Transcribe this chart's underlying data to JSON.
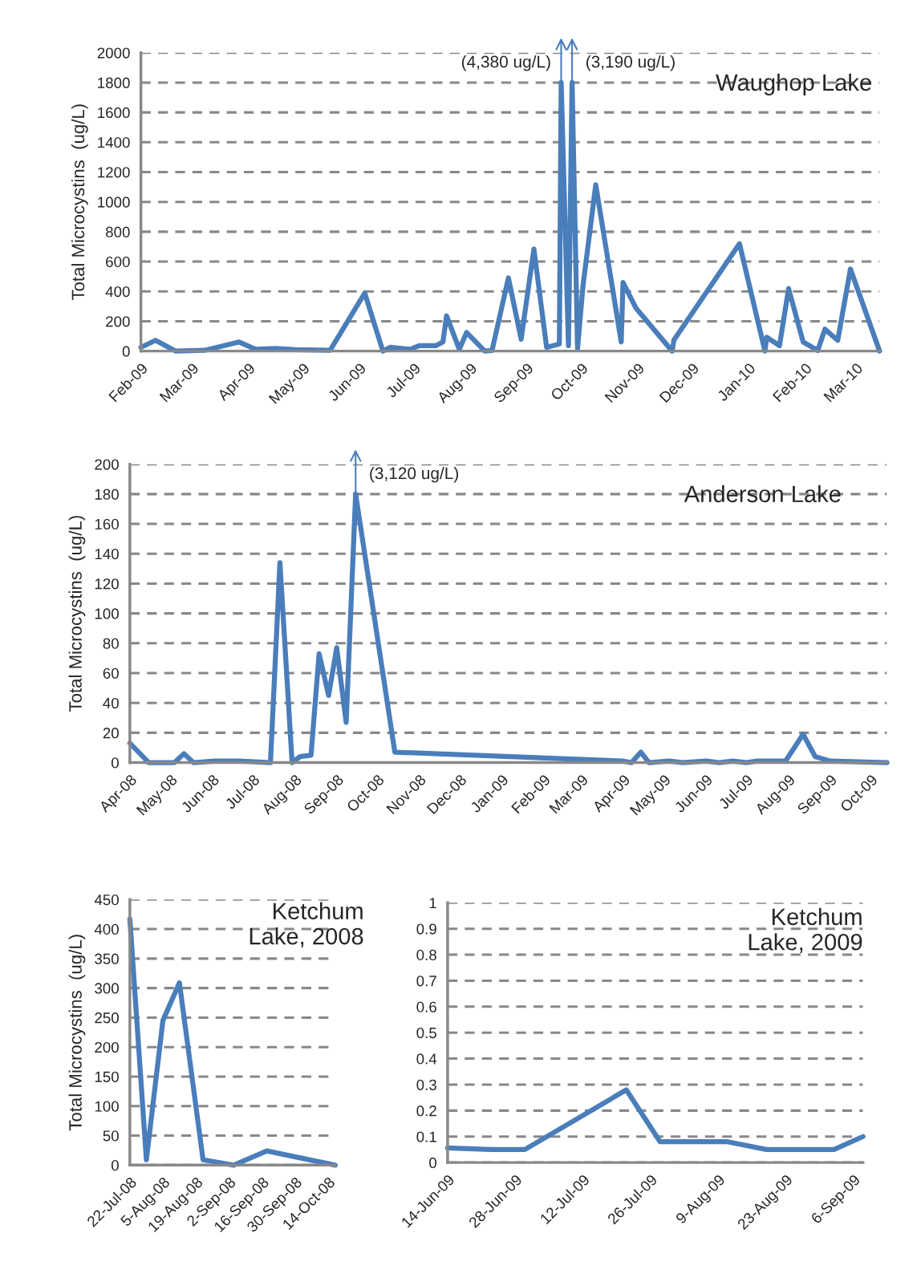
{
  "chart_data": [
    {
      "type": "line",
      "title": "Waughop Lake",
      "ylabel": "Total Microcystins  (ug/L)",
      "grid": "y",
      "xlim": [
        "2009-02-01",
        "2010-03-14"
      ],
      "xticks": [
        {
          "value": "2009-02-01",
          "label": "Feb-09"
        },
        {
          "value": "2009-03-01",
          "label": "Mar-09"
        },
        {
          "value": "2009-04-01",
          "label": "Apr-09"
        },
        {
          "value": "2009-05-01",
          "label": "May-09"
        },
        {
          "value": "2009-06-01",
          "label": "Jun-09"
        },
        {
          "value": "2009-07-01",
          "label": "Jul-09"
        },
        {
          "value": "2009-08-01",
          "label": "Aug-09"
        },
        {
          "value": "2009-09-01",
          "label": "Sep-09"
        },
        {
          "value": "2009-10-01",
          "label": "Oct-09"
        },
        {
          "value": "2009-11-01",
          "label": "Nov-09"
        },
        {
          "value": "2009-12-01",
          "label": "Dec-09"
        },
        {
          "value": "2010-01-01",
          "label": "Jan-10"
        },
        {
          "value": "2010-02-01",
          "label": "Feb-10"
        },
        {
          "value": "2010-03-01",
          "label": "Mar-10"
        }
      ],
      "ylim": [
        0,
        2000
      ],
      "yticks": [
        0,
        200,
        400,
        600,
        800,
        1000,
        1200,
        1400,
        1600,
        1800,
        2000
      ],
      "annotations": [
        {
          "text": "(4,380 ug/L)",
          "x": "2009-09-20",
          "y": 1800
        },
        {
          "text": "(3,190 ug/L)",
          "x": "2009-09-26",
          "y": 1800
        }
      ],
      "series": [
        {
          "color": "#4a7ebb",
          "x": [
            "2009-02-01",
            "2009-02-09",
            "2009-02-20",
            "2009-03-08",
            "2009-03-27",
            "2009-04-05",
            "2009-04-16",
            "2009-04-27",
            "2009-05-16",
            "2009-06-04",
            "2009-06-14",
            "2009-06-18",
            "2009-06-29",
            "2009-07-04",
            "2009-07-13",
            "2009-07-17",
            "2009-07-19",
            "2009-07-26",
            "2009-07-30",
            "2009-08-09",
            "2009-08-13",
            "2009-08-22",
            "2009-08-29",
            "2009-09-05",
            "2009-09-12",
            "2009-09-19",
            "2009-09-20",
            "2009-09-24",
            "2009-09-26",
            "2009-09-29",
            "2009-10-02",
            "2009-10-09",
            "2009-10-23",
            "2009-10-24",
            "2009-10-31",
            "2009-11-20",
            "2009-11-21",
            "2009-12-27",
            "2010-01-10",
            "2010-01-11",
            "2010-01-18",
            "2010-01-23",
            "2010-01-31",
            "2010-02-08",
            "2010-02-12",
            "2010-02-19",
            "2010-02-26",
            "2010-03-14"
          ],
          "values": [
            25,
            72,
            0,
            5,
            61,
            12,
            18,
            9,
            5,
            389,
            0,
            25,
            12,
            36,
            36,
            61,
            236,
            12,
            125,
            0,
            4,
            491,
            79,
            684,
            25,
            48,
            1800,
            36,
            1800,
            20,
            438,
            1115,
            61,
            460,
            290,
            0,
            75,
            720,
            0,
            93,
            36,
            419,
            61,
            4,
            147,
            72,
            550,
            0
          ]
        }
      ]
    },
    {
      "type": "line",
      "title": "Anderson Lake",
      "ylabel": "Total Microcystins  (ug/L)",
      "grid": "y",
      "xlim": [
        "2008-04-01",
        "2009-10-13"
      ],
      "xticks": [
        {
          "value": "2008-04-01",
          "label": "Apr-08"
        },
        {
          "value": "2008-05-01",
          "label": "May-08"
        },
        {
          "value": "2008-06-01",
          "label": "Jun-08"
        },
        {
          "value": "2008-07-01",
          "label": "Jul-08"
        },
        {
          "value": "2008-08-01",
          "label": "Aug-08"
        },
        {
          "value": "2008-09-01",
          "label": "Sep-08"
        },
        {
          "value": "2008-10-01",
          "label": "Oct-08"
        },
        {
          "value": "2008-11-01",
          "label": "Nov-08"
        },
        {
          "value": "2008-12-01",
          "label": "Dec-08"
        },
        {
          "value": "2009-01-01",
          "label": "Jan-09"
        },
        {
          "value": "2009-02-01",
          "label": "Feb-09"
        },
        {
          "value": "2009-03-01",
          "label": "Mar-09"
        },
        {
          "value": "2009-04-01",
          "label": "Apr-09"
        },
        {
          "value": "2009-05-01",
          "label": "May-09"
        },
        {
          "value": "2009-06-01",
          "label": "Jun-09"
        },
        {
          "value": "2009-07-01",
          "label": "Jul-09"
        },
        {
          "value": "2009-08-01",
          "label": "Aug-09"
        },
        {
          "value": "2009-09-01",
          "label": "Sep-09"
        },
        {
          "value": "2009-10-01",
          "label": "Oct-09"
        }
      ],
      "ylim": [
        0,
        200
      ],
      "yticks": [
        0,
        20,
        40,
        60,
        80,
        100,
        120,
        140,
        160,
        180,
        200
      ],
      "annotations": [
        {
          "text": "(3,120 ug/L)",
          "x": "2008-09-15",
          "y": 180
        }
      ],
      "series": [
        {
          "color": "#4a7ebb",
          "x": [
            "2008-04-01",
            "2008-04-15",
            "2008-05-04",
            "2008-05-11",
            "2008-05-18",
            "2008-06-03",
            "2008-06-21",
            "2008-07-14",
            "2008-07-21",
            "2008-07-30",
            "2008-08-05",
            "2008-08-13",
            "2008-08-19",
            "2008-08-26",
            "2008-09-01",
            "2008-09-08",
            "2008-09-15",
            "2008-10-14",
            "2009-04-01",
            "2009-04-07",
            "2009-04-14",
            "2009-04-20",
            "2009-05-05",
            "2009-05-15",
            "2009-06-01",
            "2009-06-11",
            "2009-06-21",
            "2009-07-01",
            "2009-07-09",
            "2009-07-30",
            "2009-08-12",
            "2009-08-21",
            "2009-09-01",
            "2009-10-13"
          ],
          "values": [
            13,
            0,
            0,
            6,
            0,
            1,
            1,
            0,
            134,
            0,
            4,
            5,
            73,
            45,
            77,
            27,
            180,
            7,
            1,
            0,
            7,
            0,
            1,
            0,
            1,
            0,
            1,
            0,
            1,
            1,
            19,
            4,
            1,
            0
          ]
        }
      ]
    },
    {
      "type": "line",
      "title": "Ketchum\nLake, 2008",
      "ylabel": "Total Microcystins  (ug/L)",
      "grid": "y",
      "xlim": [
        "2008-07-22",
        "2008-10-17"
      ],
      "xticks": [
        {
          "value": "2008-07-22",
          "label": "22-Jul-08"
        },
        {
          "value": "2008-08-05",
          "label": "5-Aug-08"
        },
        {
          "value": "2008-08-19",
          "label": "19-Aug-08"
        },
        {
          "value": "2008-09-02",
          "label": "2-Sep-08"
        },
        {
          "value": "2008-09-16",
          "label": "16-Sep-08"
        },
        {
          "value": "2008-09-30",
          "label": "30-Sep-08"
        },
        {
          "value": "2008-10-14",
          "label": "14-Oct-08"
        }
      ],
      "ylim": [
        0,
        450
      ],
      "yticks": [
        0,
        50,
        100,
        150,
        200,
        250,
        300,
        350,
        400,
        450
      ],
      "series": [
        {
          "color": "#4a7ebb",
          "x": [
            "2008-07-22",
            "2008-07-29",
            "2008-08-05",
            "2008-08-12",
            "2008-08-22",
            "2008-09-04",
            "2008-09-18",
            "2008-10-17"
          ],
          "values": [
            417,
            9,
            245,
            309,
            9,
            0,
            24,
            0
          ]
        }
      ]
    },
    {
      "type": "line",
      "title": "Ketchum\nLake, 2009",
      "grid": "y",
      "xlim": [
        "2009-06-14",
        "2009-09-08"
      ],
      "xticks": [
        {
          "value": "2009-06-14",
          "label": "14-Jun-09"
        },
        {
          "value": "2009-06-28",
          "label": "28-Jun-09"
        },
        {
          "value": "2009-07-12",
          "label": "12-Jul-09"
        },
        {
          "value": "2009-07-26",
          "label": "26-Jul-09"
        },
        {
          "value": "2009-08-09",
          "label": "9-Aug-09"
        },
        {
          "value": "2009-08-23",
          "label": "23-Aug-09"
        },
        {
          "value": "2009-09-06",
          "label": "6-Sep-09"
        }
      ],
      "ylim": [
        0,
        1
      ],
      "yticks": [
        0,
        0.1,
        0.2,
        0.3,
        0.4,
        0.5,
        0.6,
        0.7,
        0.8,
        0.9,
        1
      ],
      "series": [
        {
          "color": "#4a7ebb",
          "x": [
            "2009-06-14",
            "2009-06-23",
            "2009-06-30",
            "2009-07-21",
            "2009-07-28",
            "2009-08-11",
            "2009-08-19",
            "2009-09-02",
            "2009-09-08"
          ],
          "values": [
            0.056,
            0.05,
            0.05,
            0.28,
            0.08,
            0.08,
            0.05,
            0.05,
            0.1
          ]
        }
      ]
    }
  ]
}
